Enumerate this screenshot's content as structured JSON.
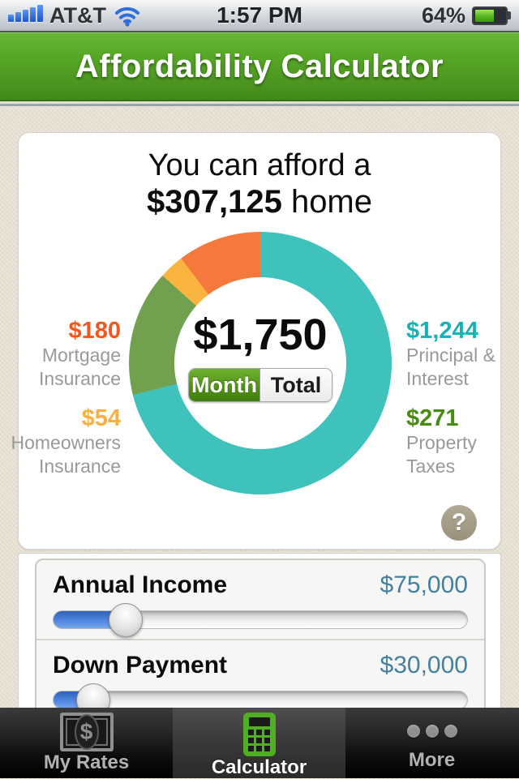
{
  "status_bar": {
    "carrier": "AT&T",
    "time": "1:57 PM",
    "battery_percent": "64%",
    "battery_level": 64,
    "signal_bars": 5
  },
  "header": {
    "title": "Affordability Calculator"
  },
  "affordability": {
    "headline_prefix": "You can afford a",
    "home_price": "$307,125",
    "headline_suffix": " home",
    "center_amount": "$1,750",
    "toggle": {
      "month": "Month",
      "total": "Total",
      "selected": "Month"
    },
    "help_label": "?"
  },
  "chart_data": {
    "type": "pie",
    "title": "Monthly housing payment breakdown",
    "total_display": "$1,750",
    "legend_position": "sides",
    "segments": [
      {
        "label": "Principal & Interest",
        "value": 1244,
        "display": "$1,244",
        "color": "#3fc1bc"
      },
      {
        "label": "Property Taxes",
        "value": 271,
        "display": "$271",
        "color": "#71a04f"
      },
      {
        "label": "Homeowners Insurance",
        "value": 54,
        "display": "$54",
        "color": "#fcb440"
      },
      {
        "label": "Mortgage Insurance",
        "value": 180,
        "display": "$180",
        "color": "#f5793c"
      }
    ]
  },
  "legend": {
    "left": [
      {
        "value": "$180",
        "line1": "Mortgage",
        "line2": "Insurance",
        "color": "#f2571f"
      },
      {
        "value": "$54",
        "line1": "Homeowners",
        "line2": "Insurance",
        "color": "#fbaf3c"
      }
    ],
    "right": [
      {
        "value": "$1,244",
        "line1": "Principal &",
        "line2": "Interest",
        "color": "#17b0b4"
      },
      {
        "value": "$271",
        "line1": "Property",
        "line2": "Taxes",
        "color": "#478c10"
      }
    ]
  },
  "sliders": [
    {
      "label": "Annual Income",
      "value": "$75,000",
      "percent": 17.5
    },
    {
      "label": "Down Payment",
      "value": "$30,000",
      "percent": 9.7
    }
  ],
  "tab_bar": {
    "tabs": [
      {
        "label": "My Rates",
        "icon": "dollar-bill-icon",
        "active": false
      },
      {
        "label": "Calculator",
        "icon": "calculator-icon",
        "active": true
      },
      {
        "label": "More",
        "icon": "ellipsis-icon",
        "active": false
      }
    ]
  },
  "colors": {
    "header_green": "#57a726",
    "accent_value_blue": "#44809f",
    "slider_fill_blue": "#4f86e0",
    "toggle_selected_green": "#549418",
    "help_button_taupe": "#a69d89"
  }
}
